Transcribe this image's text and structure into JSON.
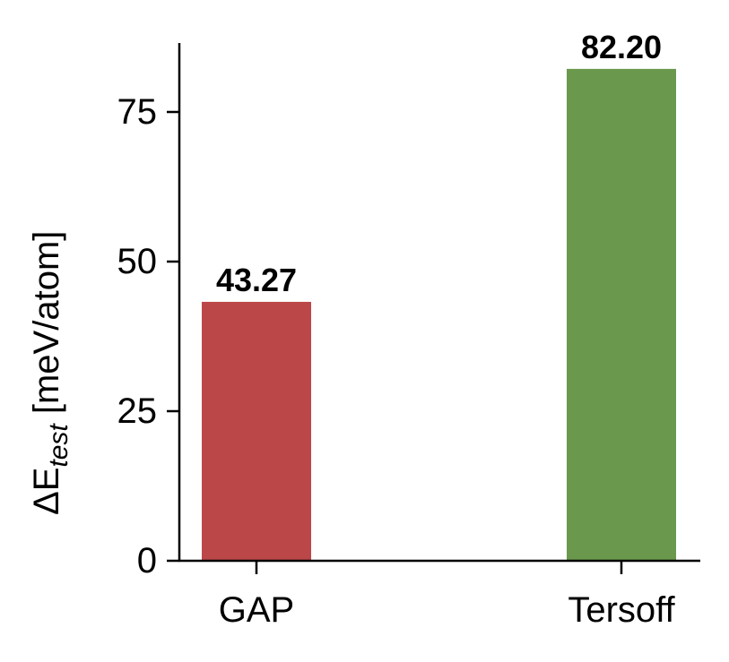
{
  "chart_data": {
    "type": "bar",
    "categories": [
      "GAP",
      "Tersoff"
    ],
    "values": [
      43.27,
      82.2
    ],
    "value_labels": [
      "43.27",
      "82.20"
    ],
    "colors": [
      "#bc4749",
      "#6a994e"
    ],
    "title": "",
    "xlabel": "",
    "ylabel": {
      "prefix": "ΔE",
      "subscript": "test",
      "suffix": " [meV/atom]"
    },
    "ylim": [
      0,
      86.5
    ],
    "yticks": [
      0,
      25,
      50,
      75
    ],
    "ytick_labels": [
      "0",
      "25",
      "50",
      "75"
    ],
    "grid": false,
    "legend": null
  }
}
